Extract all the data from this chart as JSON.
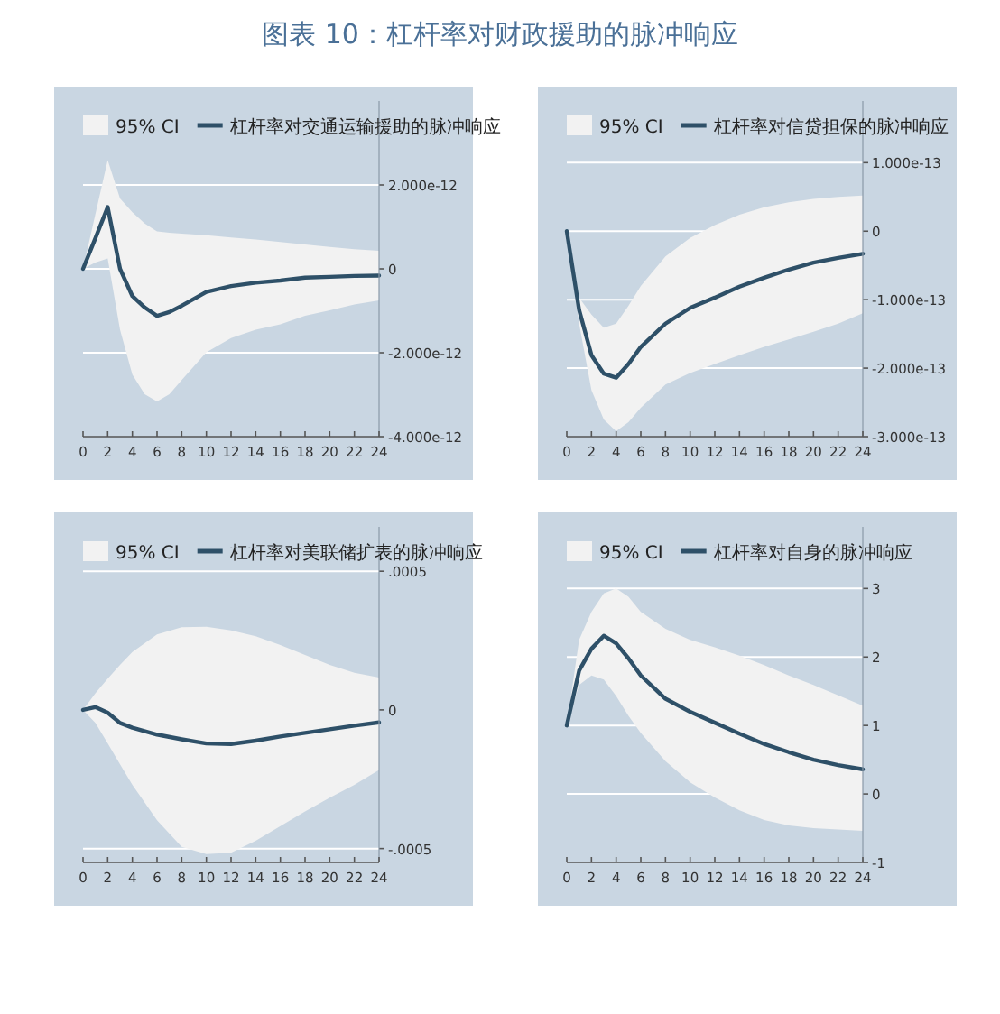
{
  "chart_data": [
    {
      "type": "line",
      "title": "图表 10：杠杆率对财政援助的脉冲响应",
      "annotations": [
        "95% CI"
      ],
      "xlim": [
        0,
        24
      ],
      "xticks": [
        0,
        2,
        4,
        6,
        8,
        10,
        12,
        14,
        16,
        18,
        20,
        22,
        24
      ],
      "ylim": [
        -4e-12,
        4e-12
      ],
      "yticks": [
        {
          "value": 2e-12,
          "label": "2.000e-12"
        },
        0,
        {
          "value": -2e-12,
          "label": "-2.000e-12"
        },
        {
          "value": -4e-12,
          "label": "-4.000e-12"
        }
      ],
      "grid": "y",
      "legend": "top",
      "series": [
        {
          "name": "杠杆率对交通运输援助的脉冲响应",
          "type": "line",
          "color": "#2e5068",
          "x": [
            0,
            1,
            2,
            3,
            4,
            5,
            6,
            7,
            8,
            10,
            12,
            14,
            16,
            18,
            20,
            22,
            24
          ],
          "values": [
            0,
            7.3e-13,
            1.47e-12,
            0,
            -6.5e-13,
            -9.2e-13,
            -1.12e-12,
            -1.03e-12,
            -8.8e-13,
            -5.5e-13,
            -4.1e-13,
            -3.3e-13,
            -2.8e-13,
            -2.1e-13,
            -1.9e-13,
            -1.7e-13,
            -1.6e-13
          ],
          "lower": [
            0,
            1.5e-13,
            2.5e-13,
            -1.45e-12,
            -2.52e-12,
            -2.99e-12,
            -3.16e-12,
            -2.99e-12,
            -2.65e-12,
            -1.99e-12,
            -1.65e-12,
            -1.45e-12,
            -1.32e-12,
            -1.12e-12,
            -9.9e-13,
            -8.5e-13,
            -7.5e-13
          ],
          "upper": [
            0,
            1.3e-12,
            2.59e-12,
            1.68e-12,
            1.35e-12,
            1.08e-12,
            8.9e-13,
            8.6e-13,
            8.4e-13,
            8e-13,
            7.5e-13,
            7e-13,
            6.4e-13,
            5.8e-13,
            5.2e-13,
            4.7e-13,
            4.3e-13
          ]
        }
      ]
    },
    {
      "type": "line",
      "annotations": [
        "95% CI"
      ],
      "xlim": [
        0,
        24
      ],
      "xticks": [
        0,
        2,
        4,
        6,
        8,
        10,
        12,
        14,
        16,
        18,
        20,
        22,
        24
      ],
      "ylim": [
        -3e-13,
        1.9e-13
      ],
      "yticks": [
        {
          "value": 1e-13,
          "label": "1.000e-13"
        },
        0,
        {
          "value": -1e-13,
          "label": "-1.000e-13"
        },
        {
          "value": -2e-13,
          "label": "-2.000e-13"
        },
        {
          "value": -3e-13,
          "label": "-3.000e-13"
        }
      ],
      "grid": "y",
      "legend": "top",
      "series": [
        {
          "name": "杠杆率对信贷担保的脉冲响应",
          "type": "line",
          "color": "#2e5068",
          "x": [
            0,
            1,
            2,
            3,
            4,
            5,
            6,
            8,
            10,
            12,
            14,
            16,
            18,
            20,
            22,
            24
          ],
          "values": [
            0,
            -1.15e-13,
            -1.81e-13,
            -2.08e-13,
            -2.14e-13,
            -1.94e-13,
            -1.69e-13,
            -1.35e-13,
            -1.12e-13,
            -9.7e-14,
            -8.1e-14,
            -6.8e-14,
            -5.6e-14,
            -4.6e-14,
            -3.9e-14,
            -3.3e-14
          ],
          "lower": [
            0,
            -1.35e-13,
            -2.32e-13,
            -2.75e-13,
            -2.92e-13,
            -2.79e-13,
            -2.58e-13,
            -2.24e-13,
            -2.07e-13,
            -1.94e-13,
            -1.81e-13,
            -1.69e-13,
            -1.58e-13,
            -1.47e-13,
            -1.35e-13,
            -1.2e-13
          ],
          "upper": [
            0,
            -9.7e-14,
            -1.22e-13,
            -1.41e-13,
            -1.35e-13,
            -1.09e-13,
            -8e-14,
            -3.7e-14,
            -1e-14,
            9e-15,
            2.4e-14,
            3.5e-14,
            4.2e-14,
            4.7e-14,
            5e-14,
            5.2e-14
          ]
        }
      ]
    },
    {
      "type": "line",
      "annotations": [
        "95% CI"
      ],
      "xlim": [
        0,
        24
      ],
      "xticks": [
        0,
        2,
        4,
        6,
        8,
        10,
        12,
        14,
        16,
        18,
        20,
        22,
        24
      ],
      "ylim": [
        -0.00055,
        0.00066
      ],
      "yticks": [
        {
          "value": 0.0005,
          "label": ".0005"
        },
        0,
        {
          "value": -0.0005,
          "label": "-.0005"
        }
      ],
      "grid": "y",
      "legend": "top",
      "series": [
        {
          "name": "杠杆率对美联储扩表的脉冲响应",
          "type": "line",
          "color": "#2e5068",
          "x": [
            0,
            1,
            2,
            3,
            4,
            6,
            8,
            10,
            12,
            14,
            16,
            18,
            20,
            22,
            24
          ],
          "values": [
            0,
            1e-05,
            -1e-05,
            -4.7e-05,
            -6.4e-05,
            -8.9e-05,
            -0.000106,
            -0.000121,
            -0.000123,
            -0.000111,
            -9.6e-05,
            -8.3e-05,
            -7e-05,
            -5.7e-05,
            -4.5e-05
          ],
          "lower": [
            0,
            -4.7e-05,
            -0.000121,
            -0.000196,
            -0.00027,
            -0.000398,
            -0.000494,
            -0.00052,
            -0.000515,
            -0.000472,
            -0.000419,
            -0.000366,
            -0.000317,
            -0.00027,
            -0.000217
          ],
          "upper": [
            0,
            6e-05,
            0.000113,
            0.000162,
            0.000209,
            0.000272,
            0.000298,
            0.0003,
            0.000287,
            0.000266,
            0.000234,
            0.000198,
            0.000162,
            0.000134,
            0.000117
          ]
        }
      ]
    },
    {
      "type": "line",
      "annotations": [
        "95% CI"
      ],
      "xlim": [
        0,
        24
      ],
      "xticks": [
        0,
        2,
        4,
        6,
        8,
        10,
        12,
        14,
        16,
        18,
        20,
        22,
        24
      ],
      "ylim": [
        -1,
        3.9
      ],
      "yticks": [
        3,
        2,
        1,
        0,
        -1
      ],
      "grid": "y",
      "legend": "top",
      "series": [
        {
          "name": "杠杆率对自身的脉冲响应",
          "type": "line",
          "color": "#2e5068",
          "x": [
            0,
            1,
            2,
            3,
            4,
            5,
            6,
            8,
            10,
            12,
            14,
            16,
            18,
            20,
            22,
            24
          ],
          "values": [
            1,
            1.8,
            2.12,
            2.31,
            2.2,
            1.98,
            1.73,
            1.39,
            1.2,
            1.04,
            0.88,
            0.73,
            0.61,
            0.5,
            0.42,
            0.36
          ],
          "lower": [
            1,
            1.59,
            1.73,
            1.67,
            1.43,
            1.14,
            0.89,
            0.48,
            0.17,
            -0.05,
            -0.24,
            -0.38,
            -0.46,
            -0.5,
            -0.52,
            -0.54
          ],
          "upper": [
            1,
            2.25,
            2.66,
            2.93,
            3.0,
            2.88,
            2.66,
            2.41,
            2.25,
            2.14,
            2.02,
            1.88,
            1.73,
            1.59,
            1.44,
            1.29
          ]
        }
      ]
    }
  ]
}
